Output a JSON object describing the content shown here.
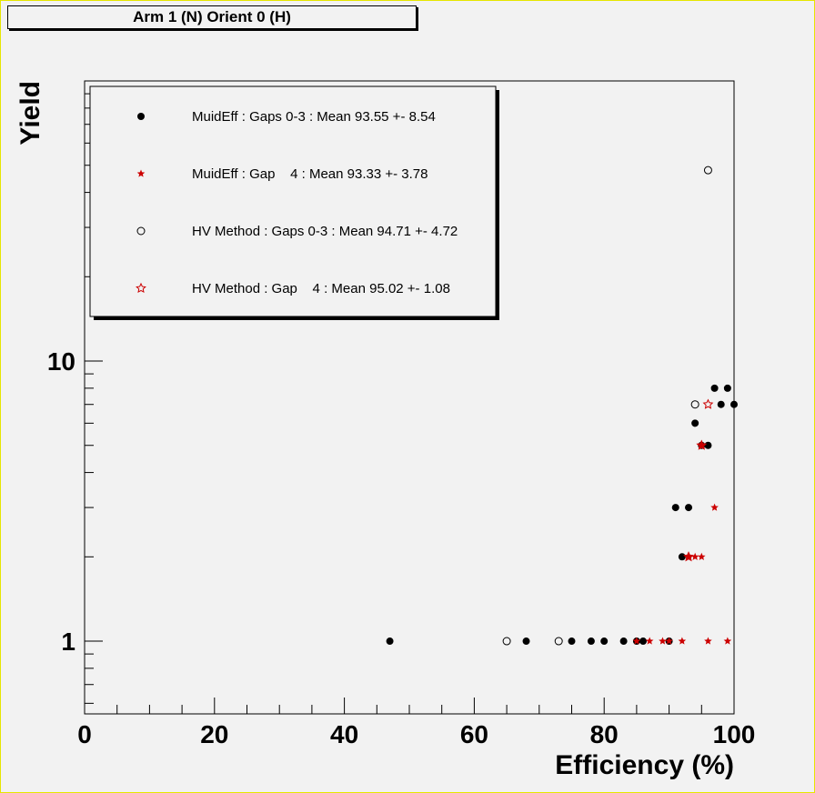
{
  "title": "Arm 1 (N) Orient 0 (H)",
  "chart_data": {
    "type": "scatter",
    "title": "Arm 1 (N) Orient 0 (H)",
    "xlabel": "Efficiency (%)",
    "ylabel": "Yield",
    "xlim": [
      0,
      100
    ],
    "ylim": [
      0.55,
      100
    ],
    "yscale": "log",
    "grid": false,
    "legend_position": "top-left",
    "x_ticks": [
      "0",
      "20",
      "40",
      "60",
      "80",
      "100"
    ],
    "y_ticks": [
      "1",
      "10"
    ],
    "series": [
      {
        "name": "MuidEff : Gaps 0-3 : Mean 93.55 +- 8.54",
        "marker": "filled-circle",
        "color": "#000000",
        "points": [
          [
            47,
            1
          ],
          [
            68,
            1
          ],
          [
            75,
            1
          ],
          [
            78,
            1
          ],
          [
            80,
            1
          ],
          [
            83,
            1
          ],
          [
            85,
            1
          ],
          [
            86,
            1
          ],
          [
            90,
            1
          ],
          [
            92,
            2
          ],
          [
            91,
            3
          ],
          [
            93,
            3
          ],
          [
            94,
            6
          ],
          [
            95,
            5
          ],
          [
            96,
            5
          ],
          [
            97,
            8
          ],
          [
            98,
            7
          ],
          [
            99,
            8
          ],
          [
            100,
            7
          ]
        ]
      },
      {
        "name": "MuidEff : Gap    4 : Mean 93.33 +- 3.78",
        "marker": "filled-star",
        "color": "#cc0000",
        "points": [
          [
            85,
            1
          ],
          [
            87,
            1
          ],
          [
            89,
            1
          ],
          [
            90,
            1
          ],
          [
            92,
            1
          ],
          [
            96,
            1
          ],
          [
            99,
            1
          ],
          [
            93,
            2
          ],
          [
            94,
            2
          ],
          [
            95,
            2
          ],
          [
            95,
            5
          ],
          [
            97,
            3
          ]
        ]
      },
      {
        "name": "HV Method : Gaps 0-3 : Mean 94.71 +- 4.72",
        "marker": "open-circle",
        "color": "#000000",
        "points": [
          [
            65,
            1
          ],
          [
            73,
            1
          ],
          [
            94,
            7
          ],
          [
            96,
            48
          ]
        ]
      },
      {
        "name": "HV Method : Gap    4 : Mean 95.02 +- 1.08",
        "marker": "open-star",
        "color": "#cc0000",
        "points": [
          [
            93,
            2
          ],
          [
            95,
            5
          ],
          [
            96,
            7
          ]
        ]
      }
    ]
  }
}
